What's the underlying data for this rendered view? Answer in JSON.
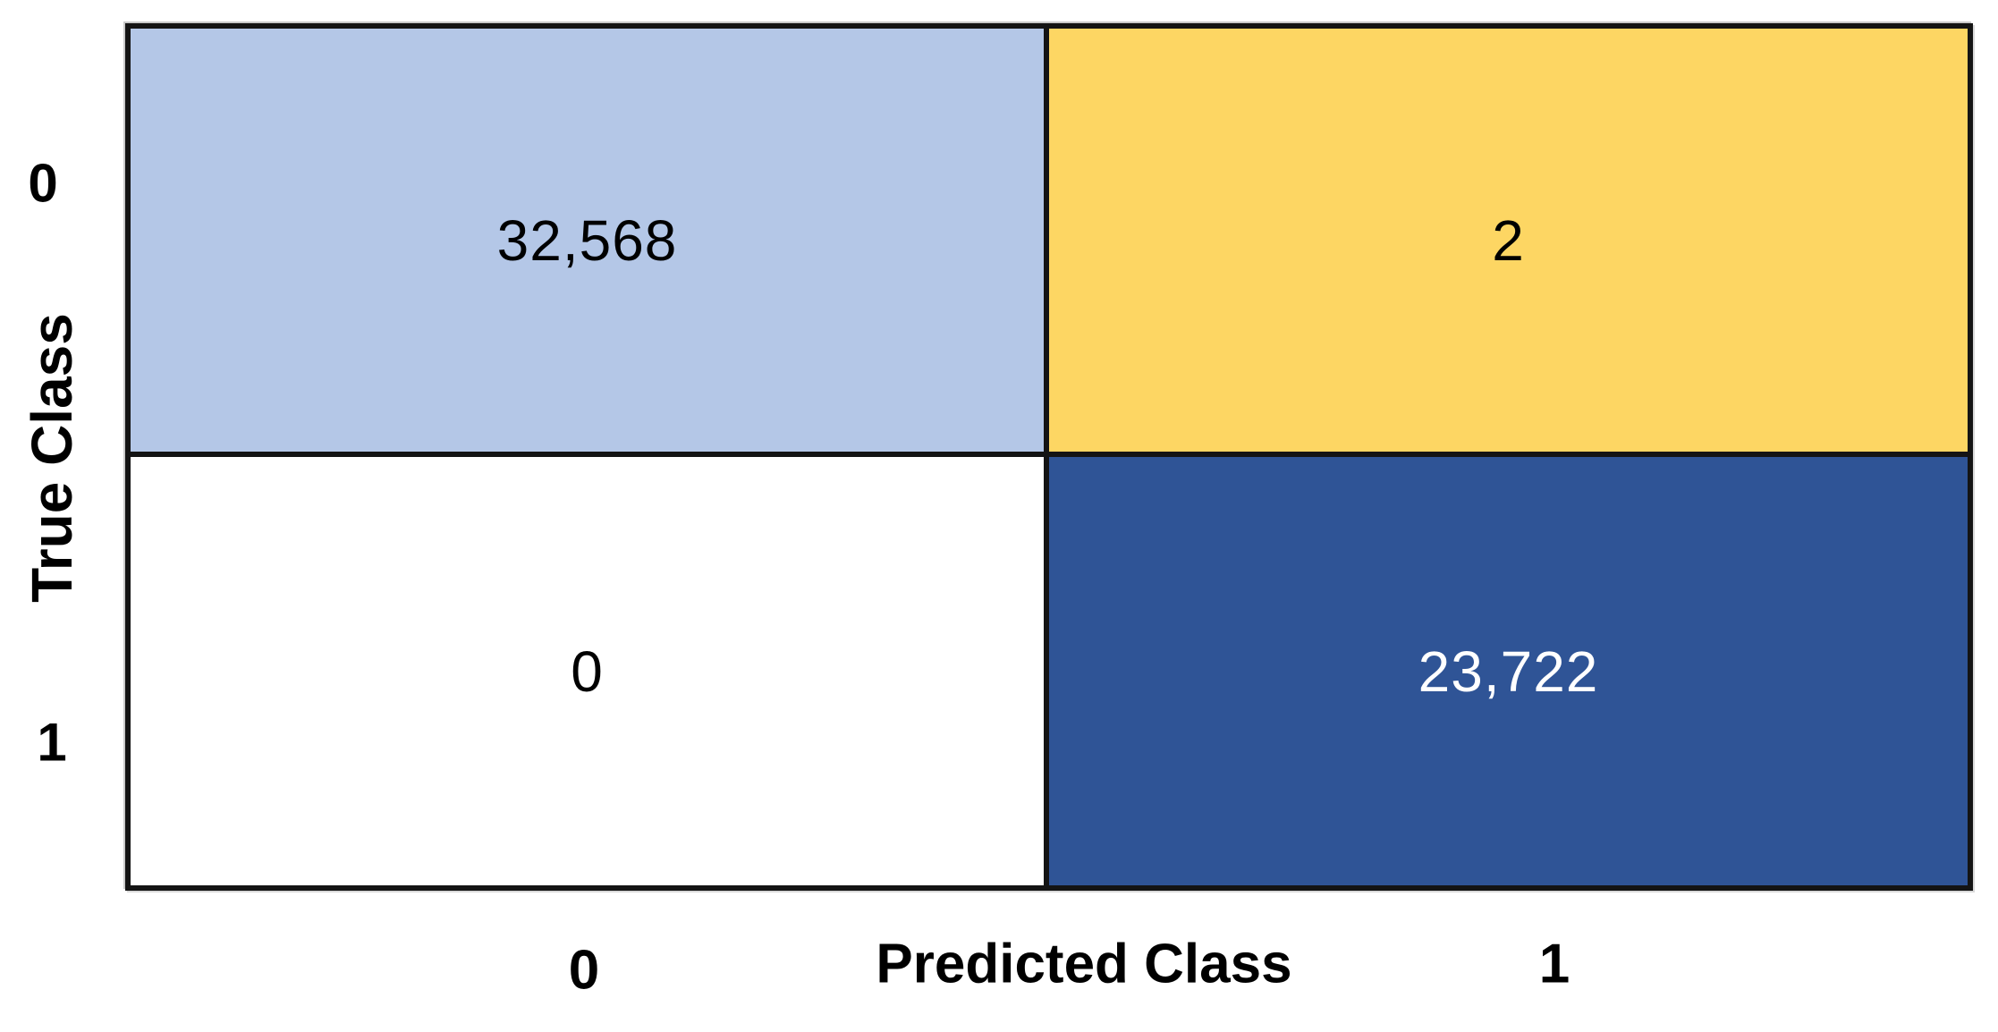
{
  "figure": {
    "kind": "confusion-matrix"
  },
  "axes": {
    "y_title": "True Class",
    "x_title": "Predicted Class",
    "y_ticks": [
      "0",
      "1"
    ],
    "x_ticks": [
      "0",
      "1"
    ]
  },
  "cells": {
    "true0_pred0": {
      "value": "32,568",
      "bg": "#b4c7e7",
      "fg": "#000000"
    },
    "true0_pred1": {
      "value": "2",
      "bg": "#fdd663",
      "fg": "#000000"
    },
    "true1_pred0": {
      "value": "0",
      "bg": "#ffffff",
      "fg": "#000000"
    },
    "true1_pred1": {
      "value": "23,722",
      "bg": "#2f5496",
      "fg": "#ffffff"
    }
  },
  "colors": {
    "border": "#141414",
    "background": "#ffffff"
  },
  "chart_data": {
    "type": "heatmap",
    "title": "",
    "xlabel": "Predicted Class",
    "ylabel": "True Class",
    "x_categories": [
      "0",
      "1"
    ],
    "y_categories": [
      "0",
      "1"
    ],
    "matrix": [
      [
        32568,
        2
      ],
      [
        0,
        23722
      ]
    ],
    "cell_labels": [
      [
        "32,568",
        "2"
      ],
      [
        "0",
        "23,722"
      ]
    ],
    "cell_colors": [
      [
        "#b4c7e7",
        "#fdd663"
      ],
      [
        "#ffffff",
        "#2f5496"
      ]
    ],
    "legend": "none",
    "grid": "off",
    "notes": "2x2 confusion matrix; rows = true class (0 top, 1 bottom), columns = predicted class (0 left, 1 right)"
  }
}
